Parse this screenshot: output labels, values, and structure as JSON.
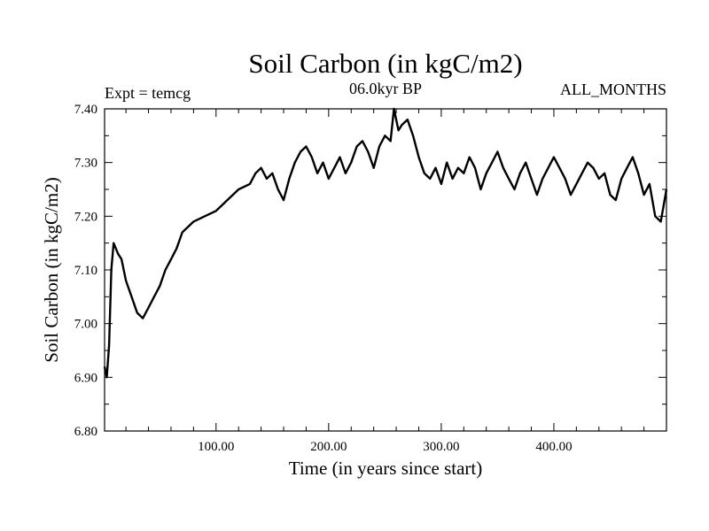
{
  "chart_data": {
    "type": "line",
    "title": "Soil Carbon (in kgC/m2)",
    "subtitle": "06.0kyr BP",
    "experiment_label": "Expt = temcg",
    "months_label": "ALL_MONTHS",
    "xlabel": "Time (in years since start)",
    "ylabel": "Soil Carbon (in kgC/m2)",
    "xlim": [
      1,
      500
    ],
    "ylim": [
      6.8,
      7.4
    ],
    "x_ticks": [
      100,
      200,
      300,
      400
    ],
    "x_tick_labels": [
      "100.00",
      "200.00",
      "300.00",
      "400.00"
    ],
    "y_ticks": [
      6.8,
      6.9,
      7.0,
      7.1,
      7.2,
      7.3,
      7.4
    ],
    "y_tick_labels": [
      "6.80",
      "6.90",
      "7.00",
      "7.10",
      "7.20",
      "7.30",
      "7.40"
    ],
    "grid": false,
    "series": [
      {
        "name": "Soil Carbon",
        "color": "#000000",
        "x": [
          1,
          3,
          5,
          7,
          9,
          11,
          13,
          16,
          20,
          25,
          30,
          35,
          40,
          45,
          50,
          55,
          60,
          65,
          70,
          80,
          90,
          100,
          110,
          120,
          130,
          135,
          140,
          145,
          150,
          155,
          160,
          165,
          170,
          175,
          180,
          185,
          190,
          195,
          200,
          205,
          210,
          215,
          220,
          225,
          230,
          235,
          240,
          245,
          250,
          255,
          258,
          262,
          265,
          270,
          275,
          280,
          285,
          290,
          295,
          300,
          305,
          310,
          315,
          320,
          325,
          330,
          335,
          340,
          345,
          350,
          355,
          360,
          365,
          370,
          375,
          380,
          385,
          390,
          395,
          400,
          405,
          410,
          415,
          420,
          425,
          430,
          435,
          440,
          445,
          450,
          455,
          460,
          465,
          470,
          475,
          480,
          485,
          490,
          495,
          500
        ],
        "values": [
          6.92,
          6.9,
          6.96,
          7.1,
          7.15,
          7.14,
          7.13,
          7.12,
          7.08,
          7.05,
          7.02,
          7.01,
          7.03,
          7.05,
          7.07,
          7.1,
          7.12,
          7.14,
          7.17,
          7.19,
          7.2,
          7.21,
          7.23,
          7.25,
          7.26,
          7.28,
          7.29,
          7.27,
          7.28,
          7.25,
          7.23,
          7.27,
          7.3,
          7.32,
          7.33,
          7.31,
          7.28,
          7.3,
          7.27,
          7.29,
          7.31,
          7.28,
          7.3,
          7.33,
          7.34,
          7.32,
          7.29,
          7.33,
          7.35,
          7.34,
          7.4,
          7.36,
          7.37,
          7.38,
          7.35,
          7.31,
          7.28,
          7.27,
          7.29,
          7.26,
          7.3,
          7.27,
          7.29,
          7.28,
          7.31,
          7.29,
          7.25,
          7.28,
          7.3,
          7.32,
          7.29,
          7.27,
          7.25,
          7.28,
          7.3,
          7.27,
          7.24,
          7.27,
          7.29,
          7.31,
          7.29,
          7.27,
          7.24,
          7.26,
          7.28,
          7.3,
          7.29,
          7.27,
          7.28,
          7.24,
          7.23,
          7.27,
          7.29,
          7.31,
          7.28,
          7.24,
          7.26,
          7.2,
          7.19,
          7.25
        ]
      }
    ]
  }
}
